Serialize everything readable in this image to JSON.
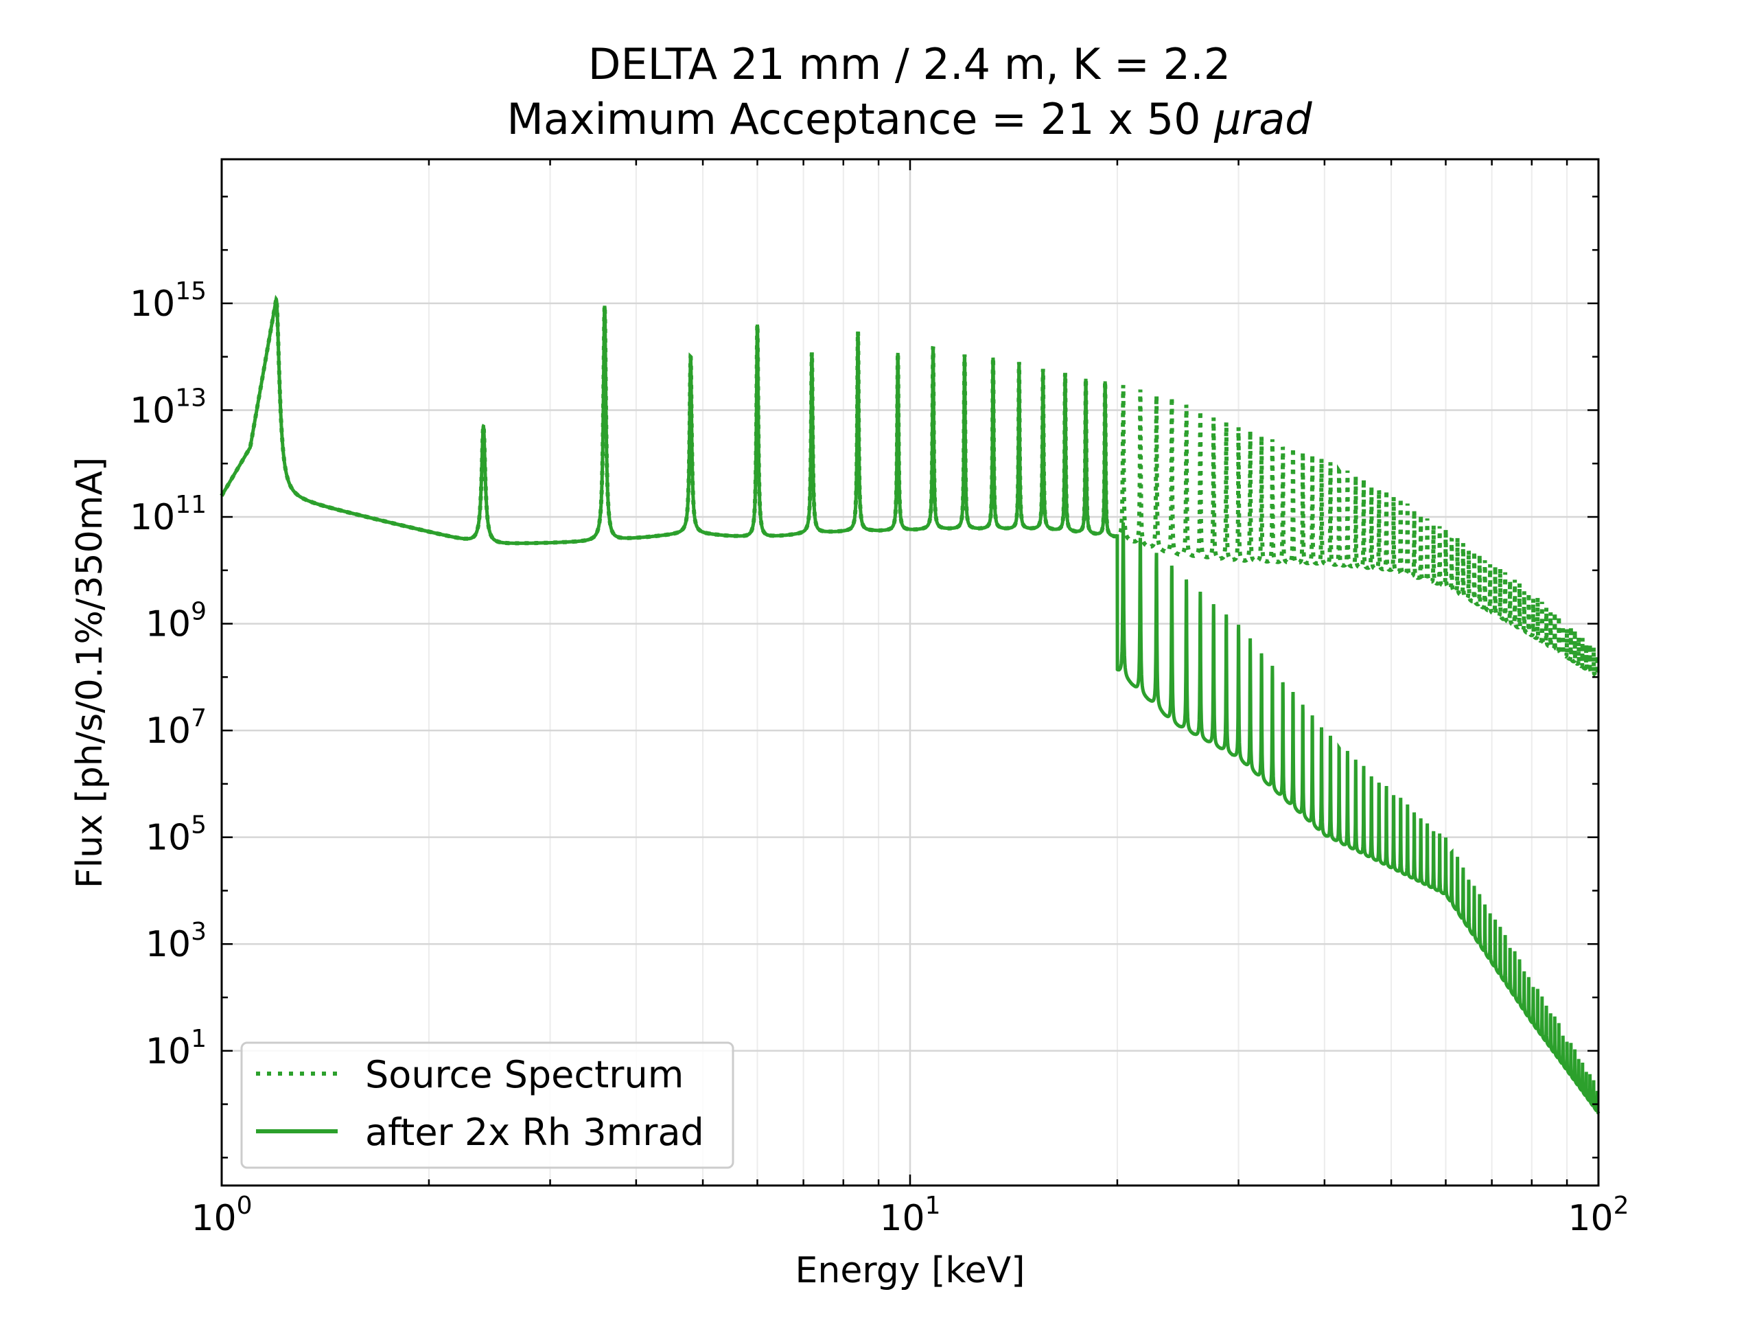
{
  "chart_data": {
    "type": "line",
    "title": "DELTA 21 mm / 2.4 m, K = 2.2",
    "subtitle_prefix": "Maximum Acceptance = 21 x 50 ",
    "subtitle_unit": "μrad",
    "xlabel": "Energy [keV]",
    "ylabel": "Flux [ph/s/0.1%/350mA]",
    "xscale": "log",
    "yscale": "log",
    "xlim": [
      1,
      100
    ],
    "ylim": [
      0.03,
      500000000000000000
    ],
    "grid": true,
    "legend_position": "lower-left",
    "fundamental_keV": 1.2,
    "x_ticks": [
      {
        "base": "10",
        "exp": "0",
        "value": 1
      },
      {
        "base": "10",
        "exp": "1",
        "value": 10
      },
      {
        "base": "10",
        "exp": "2",
        "value": 100
      }
    ],
    "y_ticks": [
      {
        "base": "10",
        "exp": "1",
        "value": 10
      },
      {
        "base": "10",
        "exp": "3",
        "value": 1000
      },
      {
        "base": "10",
        "exp": "5",
        "value": 100000
      },
      {
        "base": "10",
        "exp": "7",
        "value": 10000000
      },
      {
        "base": "10",
        "exp": "9",
        "value": 1000000000
      },
      {
        "base": "10",
        "exp": "11",
        "value": 100000000000
      },
      {
        "base": "10",
        "exp": "13",
        "value": 10000000000000
      },
      {
        "base": "10",
        "exp": "15",
        "value": 1000000000000000
      }
    ],
    "series": [
      {
        "name": "Source Spectrum",
        "style": "dotted",
        "color": "#2ca02c",
        "peak_energies_keV": [
          1.2,
          2.4,
          3.6,
          4.8,
          6.0,
          7.2,
          8.4,
          9.6,
          10.8,
          12.0,
          13.2,
          14.4,
          15.6,
          16.8,
          18.0,
          19.2,
          20.4,
          21.6,
          22.8,
          24.0,
          30.0,
          40.0,
          50.0,
          60.0,
          80.0,
          100.0
        ],
        "peak_flux": [
          1200000000000000.0,
          5000000000000.0,
          900000000000000.0,
          100000000000000.0,
          400000000000000.0,
          120000000000000.0,
          300000000000000.0,
          120000000000000.0,
          160000000000000.0,
          110000000000000.0,
          100000000000000.0,
          80000000000000.0,
          60000000000000.0,
          50000000000000.0,
          40000000000000.0,
          35000000000000.0,
          30000000000000.0,
          25000000000000.0,
          20000000000000.0,
          18000000000000.0,
          5000000000000.0,
          1200000000000.0,
          300000000000.0,
          60000000000.0,
          4000000000.0,
          300000000.0
        ],
        "valley_flux": [
          250000000000.0,
          30000000000.0,
          35000000000.0,
          50000000000.0,
          40000000000.0,
          50000000000.0,
          55000000000.0,
          55000000000.0,
          60000000000.0,
          60000000000.0,
          60000000000.0,
          60000000000.0,
          60000000000.0,
          55000000000.0,
          50000000000.0,
          45000000000.0,
          40000000000.0,
          30000000000.0,
          25000000000.0,
          20000000000.0,
          15000000000.0,
          13000000000.0,
          10000000000.0,
          5000000000.0,
          600000000.0,
          100000000.0
        ]
      },
      {
        "name": "after 2x Rh 3mrad",
        "style": "solid",
        "color": "#2ca02c",
        "cutoff_keV": 20,
        "high_energy_envelope": [
          {
            "x": 20,
            "y": 100000000000.0
          },
          {
            "x": 30,
            "y": 1000000000.0
          },
          {
            "x": 40,
            "y": 10000000.0
          },
          {
            "x": 60,
            "y": 100000.0
          },
          {
            "x": 100,
            "y": 2
          }
        ]
      }
    ]
  }
}
